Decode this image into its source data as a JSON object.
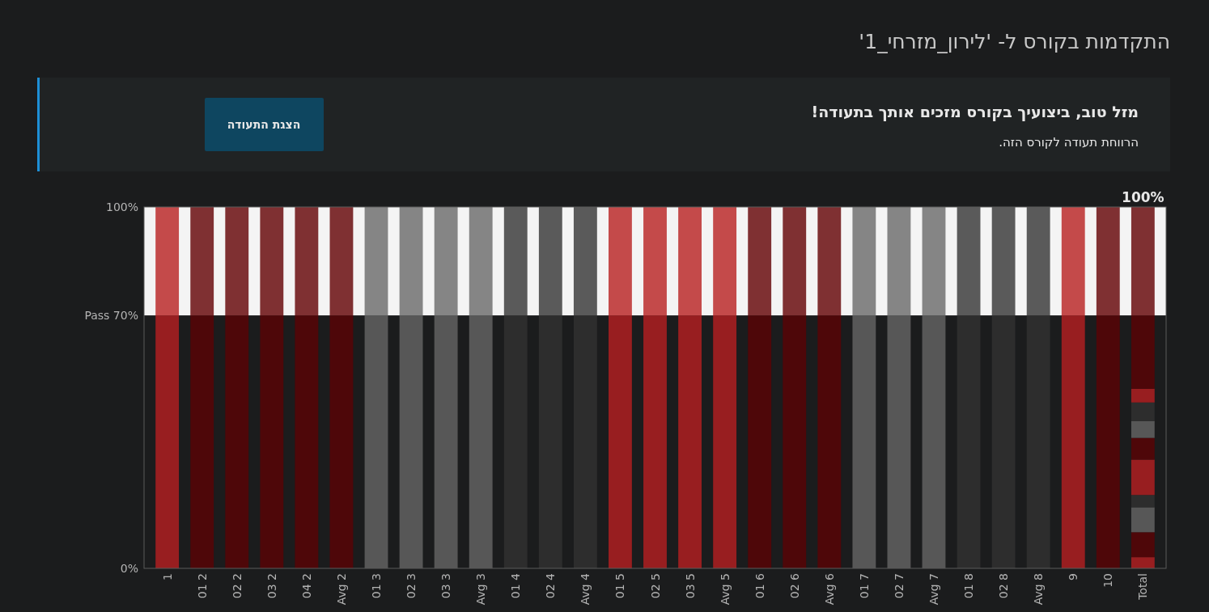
{
  "chart_data": {
    "type": "bar",
    "stacked": true,
    "title": "התקדמות בקורס ל- 'לירון_מזרחי_1'",
    "annotations": [
      "מזל טוב, ביצועיך בקורס מזכים אותך בתעודה!",
      "הרווחת תעודה לקורס הזה.",
      "הצגת התעודה",
      {
        "text": "100%",
        "x": "Total",
        "y": 100
      }
    ],
    "categories": [
      "1",
      "01 2",
      "02 2",
      "03 2",
      "04 2",
      "Avg 2",
      "01 3",
      "02 3",
      "03 3",
      "Avg 3",
      "01 4",
      "02 4",
      "Avg 4",
      "01 5",
      "02 5",
      "03 5",
      "Avg 5",
      "01 6",
      "02 6",
      "Avg 6",
      "01 7",
      "02 7",
      "Avg 7",
      "01 8",
      "02 8",
      "Avg 8",
      "9",
      "10",
      "Total"
    ],
    "series": [
      {
        "colors": [
          "#981e20",
          "#4e0709",
          "#4e0709",
          "#4e0709",
          "#4e0709",
          "#4e0709",
          "#575757",
          "#575757",
          "#575757",
          "#575757",
          "#2d2d2d",
          "#2d2d2d",
          "#2d2d2d",
          "#981e20",
          "#981e20",
          "#981e20",
          "#981e20",
          "#4e0709",
          "#4e0709",
          "#4e0709",
          "#575757",
          "#575757",
          "#575757",
          "#2d2d2d",
          "#2d2d2d",
          "#2d2d2d",
          "#981e20",
          "#4e0709",
          null
        ],
        "values": [
          70,
          70,
          70,
          70,
          70,
          70,
          70,
          70,
          70,
          70,
          70,
          70,
          70,
          70,
          70,
          70,
          70,
          70,
          70,
          70,
          70,
          70,
          70,
          70,
          70,
          70,
          70,
          70,
          null
        ]
      },
      {
        "color": "#981e20",
        "values": [
          null,
          null,
          null,
          null,
          null,
          null,
          null,
          null,
          null,
          null,
          null,
          null,
          null,
          null,
          null,
          null,
          null,
          null,
          null,
          null,
          null,
          null,
          null,
          null,
          null,
          null,
          null,
          null,
          3.1
        ]
      },
      {
        "color": "#4e0709",
        "values": [
          null,
          null,
          null,
          null,
          null,
          null,
          null,
          null,
          null,
          null,
          null,
          null,
          null,
          null,
          null,
          null,
          null,
          null,
          null,
          null,
          null,
          null,
          null,
          null,
          null,
          null,
          null,
          null,
          6.9
        ]
      },
      {
        "color": "#575757",
        "values": [
          null,
          null,
          null,
          null,
          null,
          null,
          null,
          null,
          null,
          null,
          null,
          null,
          null,
          null,
          null,
          null,
          null,
          null,
          null,
          null,
          null,
          null,
          null,
          null,
          null,
          null,
          null,
          null,
          6.9
        ]
      },
      {
        "color": "#2d2d2d",
        "values": [
          null,
          null,
          null,
          null,
          null,
          null,
          null,
          null,
          null,
          null,
          null,
          null,
          null,
          null,
          null,
          null,
          null,
          null,
          null,
          null,
          null,
          null,
          null,
          null,
          null,
          null,
          null,
          null,
          3.4
        ]
      },
      {
        "color": "#981e20",
        "values": [
          null,
          null,
          null,
          null,
          null,
          null,
          null,
          null,
          null,
          null,
          null,
          null,
          null,
          null,
          null,
          null,
          null,
          null,
          null,
          null,
          null,
          null,
          null,
          null,
          null,
          null,
          null,
          null,
          9.8
        ]
      },
      {
        "color": "#4e0709",
        "values": [
          null,
          null,
          null,
          null,
          null,
          null,
          null,
          null,
          null,
          null,
          null,
          null,
          null,
          null,
          null,
          null,
          null,
          null,
          null,
          null,
          null,
          null,
          null,
          null,
          null,
          null,
          null,
          null,
          6.0
        ]
      },
      {
        "color": "#575757",
        "values": [
          null,
          null,
          null,
          null,
          null,
          null,
          null,
          null,
          null,
          null,
          null,
          null,
          null,
          null,
          null,
          null,
          null,
          null,
          null,
          null,
          null,
          null,
          null,
          null,
          null,
          null,
          null,
          null,
          4.7
        ]
      },
      {
        "color": "#2d2d2d",
        "values": [
          null,
          null,
          null,
          null,
          null,
          null,
          null,
          null,
          null,
          null,
          null,
          null,
          null,
          null,
          null,
          null,
          null,
          null,
          null,
          null,
          null,
          null,
          null,
          null,
          null,
          null,
          null,
          null,
          5.1
        ]
      },
      {
        "color": "#981e20",
        "values": [
          null,
          null,
          null,
          null,
          null,
          null,
          null,
          null,
          null,
          null,
          null,
          null,
          null,
          null,
          null,
          null,
          null,
          null,
          null,
          null,
          null,
          null,
          null,
          null,
          null,
          null,
          null,
          null,
          3.8
        ]
      },
      {
        "color": "#4e0709",
        "values": [
          null,
          null,
          null,
          null,
          null,
          null,
          null,
          null,
          null,
          null,
          null,
          null,
          null,
          null,
          null,
          null,
          null,
          null,
          null,
          null,
          null,
          null,
          null,
          null,
          null,
          null,
          null,
          null,
          20.3
        ]
      },
      {
        "colors": [
          "#c44a4a",
          "#7f3032",
          "#7f3032",
          "#7f3032",
          "#7f3032",
          "#7f3032",
          "#858585",
          "#858585",
          "#858585",
          "#858585",
          "#5a5a5a",
          "#5a5a5a",
          "#5a5a5a",
          "#c44a4a",
          "#c44a4a",
          "#c44a4a",
          "#c44a4a",
          "#7f3032",
          "#7f3032",
          "#7f3032",
          "#858585",
          "#858585",
          "#858585",
          "#5a5a5a",
          "#5a5a5a",
          "#5a5a5a",
          "#c44a4a",
          "#7f3032",
          "#7f3032"
        ],
        "values": [
          30,
          30,
          30,
          30,
          30,
          30,
          30,
          30,
          30,
          30,
          30,
          30,
          30,
          30,
          30,
          30,
          30,
          30,
          30,
          30,
          30,
          30,
          30,
          30,
          30,
          30,
          30,
          30,
          30
        ]
      }
    ],
    "ylim": [
      0,
      100
    ],
    "yticks": [
      {
        "value": 0,
        "label": "0%"
      },
      {
        "value": 70,
        "label": "Pass 70%"
      },
      {
        "value": 100,
        "label": "100%"
      }
    ],
    "bands": [
      {
        "axis": "y",
        "from": 70,
        "to": 100,
        "color": "#f4f4f4"
      }
    ],
    "grid": false
  }
}
